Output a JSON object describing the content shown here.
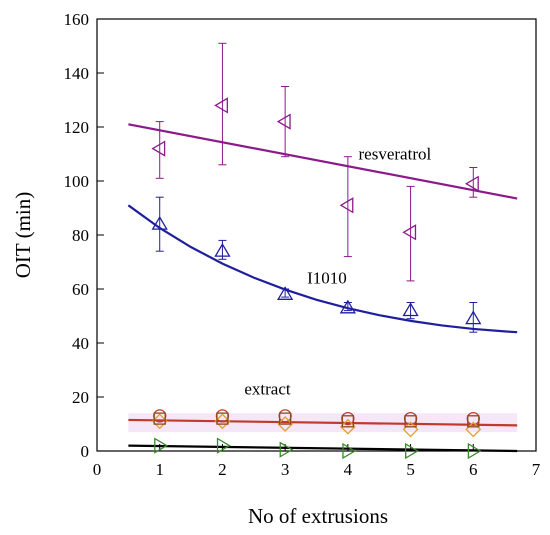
{
  "chart_data": {
    "type": "scatter",
    "title": "",
    "xlabel": "No of extrusions",
    "ylabel": "OIT (min)",
    "xlim": [
      0,
      7
    ],
    "ylim": [
      0,
      160
    ],
    "x_ticks": [
      0,
      1,
      2,
      3,
      4,
      5,
      6,
      7
    ],
    "y_ticks": [
      0,
      20,
      40,
      60,
      80,
      100,
      120,
      140,
      160
    ],
    "grid": false,
    "legend": "none",
    "series": [
      {
        "name": "resveratrol",
        "color": "#8b1a8b",
        "marker": "triangle-left",
        "x": [
          1,
          2,
          3,
          4,
          5,
          6
        ],
        "y": [
          112,
          128,
          122,
          91,
          81,
          99
        ],
        "err_low": [
          101,
          106,
          109,
          72,
          63,
          94
        ],
        "err_high": [
          122,
          151,
          135,
          109,
          98,
          105
        ],
        "fit": {
          "type": "linear",
          "x": [
            0.5,
            6.7
          ],
          "y": [
            121,
            93.5
          ]
        }
      },
      {
        "name": "I1010",
        "color": "#1f1f9e",
        "marker": "triangle-up",
        "x": [
          1,
          2,
          3,
          4,
          5,
          6
        ],
        "y": [
          84,
          74,
          58,
          53,
          52,
          49
        ],
        "err_low": [
          74,
          71,
          57,
          52,
          49,
          44
        ],
        "err_high": [
          94,
          78,
          60,
          55,
          55,
          55
        ],
        "fit": {
          "type": "curve",
          "x": [
            0.5,
            1,
            1.5,
            2,
            2.5,
            3,
            3.5,
            4,
            4.5,
            5,
            5.5,
            6,
            6.5,
            6.7
          ],
          "y": [
            91,
            82.6,
            75.5,
            69.4,
            64.2,
            59.8,
            56.0,
            52.9,
            50.3,
            48.2,
            46.5,
            45.2,
            44.3,
            44.0
          ]
        }
      },
      {
        "name": "extract",
        "color": "#c0392b",
        "marker": "circle",
        "x": [
          1,
          2,
          3,
          4,
          5,
          6
        ],
        "y": [
          13,
          13,
          13,
          12,
          12,
          12
        ],
        "fit": {
          "type": "linear",
          "x": [
            0.5,
            6.7
          ],
          "y": [
            11.5,
            9.5
          ]
        }
      },
      {
        "name": "",
        "color": "#e0a030",
        "marker": "diamond",
        "x": [
          1,
          2,
          3,
          4,
          5,
          6
        ],
        "y": [
          11,
          11,
          10,
          9,
          8,
          8
        ]
      },
      {
        "name": "",
        "color": "#8a4a1a",
        "marker": "square",
        "x": [
          1,
          2,
          3,
          4,
          5,
          6
        ],
        "y": [
          12,
          12,
          12,
          11,
          11,
          11
        ]
      },
      {
        "name": "",
        "color": "#3a8a2a",
        "marker": "triangle-right",
        "x": [
          1,
          2,
          3,
          4,
          5,
          6
        ],
        "y": [
          2,
          2,
          0.5,
          0,
          0,
          0
        ],
        "fit": {
          "type": "linear",
          "x": [
            0.5,
            6.7
          ],
          "y": [
            2,
            0
          ]
        },
        "fit_color": "#000000"
      }
    ]
  }
}
